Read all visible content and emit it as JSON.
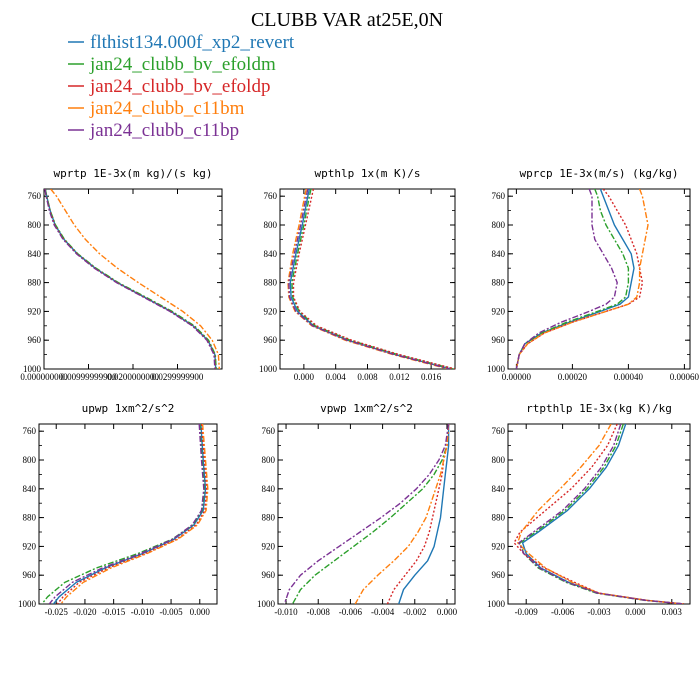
{
  "figure_title": "CLUBB VAR at25E,0N",
  "legend": [
    {
      "label": "flthist134.000f_xp2_revert",
      "color": "#1f77b4",
      "dash": ""
    },
    {
      "label": "jan24_clubb_bv_efoldm",
      "color": "#2ca02c",
      "dash": "6,2,2,2"
    },
    {
      "label": "jan24_clubb_bv_efoldp",
      "color": "#d62728",
      "dash": "2,2"
    },
    {
      "label": "jan24_clubb_c11bm",
      "color": "#ff7f0e",
      "dash": "6,2,2,2"
    },
    {
      "label": "jan24_clubb_c11bp",
      "color": "#7b3294",
      "dash": "6,2,2,2"
    }
  ],
  "chart_data": [
    {
      "type": "line",
      "title": "wprtp  1E-3x(m kg)/(s kg)",
      "xlim": [
        0.0,
        0.04
      ],
      "ylim": [
        1000,
        750
      ],
      "xticks": [
        0.0,
        0.01,
        0.02,
        0.03
      ],
      "xtick_labels": [
        "0.000000000",
        "0.00999999900",
        "0.0200000000",
        "0.0299999900"
      ],
      "yticks": [
        760,
        800,
        840,
        880,
        920,
        960,
        1000
      ],
      "y": [
        750,
        760,
        780,
        800,
        820,
        840,
        860,
        880,
        900,
        920,
        940,
        960,
        980,
        1000
      ],
      "series": [
        {
          "values": [
            0.0003,
            0.0006,
            0.0014,
            0.0025,
            0.0045,
            0.0075,
            0.0115,
            0.0165,
            0.0225,
            0.0285,
            0.0335,
            0.0368,
            0.0384,
            0.0386
          ]
        },
        {
          "values": [
            0.0003,
            0.0006,
            0.0014,
            0.0026,
            0.0046,
            0.0076,
            0.0117,
            0.0167,
            0.0228,
            0.0288,
            0.0338,
            0.037,
            0.0385,
            0.0387
          ]
        },
        {
          "values": [
            0.0002,
            0.0005,
            0.0013,
            0.0024,
            0.0044,
            0.0074,
            0.0114,
            0.0164,
            0.0224,
            0.0284,
            0.0334,
            0.0367,
            0.0383,
            0.0385
          ]
        },
        {
          "values": [
            0.0015,
            0.0028,
            0.0048,
            0.0068,
            0.0093,
            0.0125,
            0.0165,
            0.0212,
            0.0262,
            0.0312,
            0.0352,
            0.0378,
            0.0392,
            0.0394
          ]
        },
        {
          "values": [
            0.0002,
            0.0005,
            0.0012,
            0.0023,
            0.0043,
            0.0073,
            0.0113,
            0.0163,
            0.0223,
            0.0283,
            0.0333,
            0.0366,
            0.0382,
            0.0384
          ]
        }
      ]
    },
    {
      "type": "line",
      "title": "wpthlp  1x(m K)/s",
      "xlim": [
        -0.003,
        0.019
      ],
      "ylim": [
        1000,
        750
      ],
      "xticks": [
        0.0,
        0.004,
        0.008,
        0.012,
        0.016
      ],
      "xtick_labels": [
        "0.000",
        "0.004",
        "0.008",
        "0.012",
        "0.016"
      ],
      "yticks": [
        760,
        800,
        840,
        880,
        920,
        960,
        1000
      ],
      "y": [
        750,
        760,
        800,
        840,
        880,
        900,
        920,
        940,
        960,
        980,
        1000
      ],
      "series": [
        {
          "values": [
            0.0007,
            0.0005,
            -0.0002,
            -0.001,
            -0.0017,
            -0.0016,
            -0.0008,
            0.0012,
            0.0055,
            0.0115,
            0.0185
          ]
        },
        {
          "values": [
            0.0009,
            0.0007,
            0.0,
            -0.0008,
            -0.0015,
            -0.0014,
            -0.0006,
            0.0014,
            0.0058,
            0.0118,
            0.0188
          ]
        },
        {
          "values": [
            0.0012,
            0.001,
            0.0002,
            -0.0006,
            -0.0013,
            -0.0013,
            -0.0005,
            0.0016,
            0.006,
            0.012,
            0.019
          ]
        },
        {
          "values": [
            0.0003,
            0.0001,
            -0.0006,
            -0.0014,
            -0.002,
            -0.0019,
            -0.0011,
            0.001,
            0.0052,
            0.0112,
            0.0182
          ]
        },
        {
          "values": [
            0.0005,
            0.0003,
            -0.0004,
            -0.0012,
            -0.0019,
            -0.0018,
            -0.001,
            0.0011,
            0.0054,
            0.0114,
            0.0184
          ]
        }
      ]
    },
    {
      "type": "line",
      "title": "wprcp  1E-3x(m/s) (kg/kg)",
      "xlim": [
        -3e-05,
        0.00062
      ],
      "ylim": [
        1000,
        750
      ],
      "xticks": [
        0.0,
        0.0002,
        0.0004,
        0.0006
      ],
      "xtick_labels": [
        "0.00000",
        "0.00020",
        "0.00040",
        "0.00060"
      ],
      "yticks": [
        760,
        800,
        840,
        880,
        920,
        960,
        1000
      ],
      "y": [
        750,
        760,
        780,
        800,
        820,
        840,
        860,
        880,
        900,
        910,
        920,
        935,
        950,
        965,
        980,
        1000
      ],
      "series": [
        {
          "values": [
            0.0003,
            0.00031,
            0.00033,
            0.00035,
            0.00038,
            0.00041,
            0.00042,
            0.00041,
            0.0004,
            0.00037,
            0.0003,
            0.00019,
            9e-05,
            3e-05,
            1e-05,
            0.0
          ]
        },
        {
          "values": [
            0.00028,
            0.00029,
            0.0003,
            0.00032,
            0.00035,
            0.00038,
            0.0004,
            0.0004,
            0.00039,
            0.00036,
            0.00029,
            0.00018,
            9e-05,
            3e-05,
            1e-05,
            0.0
          ]
        },
        {
          "values": [
            0.00031,
            0.00033,
            0.00036,
            0.00039,
            0.00041,
            0.00043,
            0.00044,
            0.00045,
            0.00044,
            0.0004,
            0.00032,
            0.0002,
            0.0001,
            4e-05,
            1e-05,
            0.0
          ]
        },
        {
          "values": [
            0.00044,
            0.00045,
            0.00046,
            0.00047,
            0.00046,
            0.00045,
            0.00044,
            0.00044,
            0.00043,
            0.0004,
            0.00032,
            0.0002,
            0.0001,
            4e-05,
            1e-05,
            0.0
          ]
        },
        {
          "values": [
            0.00026,
            0.00027,
            0.00027,
            0.00027,
            0.00028,
            0.00031,
            0.00034,
            0.00036,
            0.00035,
            0.00032,
            0.00026,
            0.00016,
            8e-05,
            3e-05,
            1e-05,
            0.0
          ]
        }
      ]
    },
    {
      "type": "line",
      "title": "upwp  1xm^2/s^2",
      "xlim": [
        -0.028,
        0.003
      ],
      "ylim": [
        1000,
        750
      ],
      "xticks": [
        -0.025,
        -0.02,
        -0.015,
        -0.01,
        -0.005,
        0.0
      ],
      "xtick_labels": [
        "-0.025",
        "-0.020",
        "-0.015",
        "-0.010",
        "-0.005",
        "0.000"
      ],
      "yticks": [
        760,
        800,
        840,
        880,
        920,
        960,
        1000
      ],
      "y": [
        750,
        800,
        840,
        870,
        890,
        910,
        930,
        950,
        970,
        990,
        1000
      ],
      "series": [
        {
          "values": [
            0.0002,
            0.0006,
            0.001,
            0.0006,
            -0.001,
            -0.0045,
            -0.01,
            -0.0165,
            -0.0215,
            -0.0245,
            -0.0255
          ]
        },
        {
          "values": [
            0.0,
            0.0004,
            0.0008,
            0.0004,
            -0.0012,
            -0.0048,
            -0.0108,
            -0.018,
            -0.0235,
            -0.0265,
            -0.0275
          ]
        },
        {
          "values": [
            0.0003,
            0.0008,
            0.0012,
            0.0009,
            -0.0006,
            -0.004,
            -0.0095,
            -0.016,
            -0.021,
            -0.0238,
            -0.0248
          ]
        },
        {
          "values": [
            0.0005,
            0.001,
            0.0014,
            0.0011,
            -0.0004,
            -0.0038,
            -0.0092,
            -0.0155,
            -0.0203,
            -0.0232,
            -0.0242
          ]
        },
        {
          "values": [
            -0.0001,
            0.0003,
            0.0007,
            0.0003,
            -0.0013,
            -0.0047,
            -0.0103,
            -0.017,
            -0.0222,
            -0.0252,
            -0.0262
          ]
        }
      ]
    },
    {
      "type": "line",
      "title": "vpwp  1xm^2/s^2",
      "xlim": [
        -0.0105,
        0.0005
      ],
      "ylim": [
        1000,
        750
      ],
      "xticks": [
        -0.01,
        -0.008,
        -0.006,
        -0.004,
        -0.002,
        0.0
      ],
      "xtick_labels": [
        "-0.010",
        "-0.008",
        "-0.006",
        "-0.004",
        "-0.002",
        "0.000"
      ],
      "yticks": [
        760,
        800,
        840,
        880,
        920,
        960,
        1000
      ],
      "y": [
        750,
        780,
        800,
        820,
        840,
        860,
        880,
        900,
        920,
        940,
        960,
        980,
        1000
      ],
      "series": [
        {
          "values": [
            0.0001,
            0.0001,
            0.0,
            -0.0001,
            -0.0002,
            -0.0003,
            -0.0004,
            -0.0006,
            -0.0008,
            -0.0012,
            -0.002,
            -0.0027,
            -0.003
          ]
        },
        {
          "values": [
            0.0001,
            0.0,
            -0.0003,
            -0.0008,
            -0.0015,
            -0.0025,
            -0.0035,
            -0.0046,
            -0.0058,
            -0.007,
            -0.0082,
            -0.0091,
            -0.0096
          ]
        },
        {
          "values": [
            0.0001,
            0.0,
            -0.0002,
            -0.0003,
            -0.0005,
            -0.0007,
            -0.0009,
            -0.0011,
            -0.0014,
            -0.0019,
            -0.0026,
            -0.0033,
            -0.0037
          ]
        },
        {
          "values": [
            0.0001,
            0.0,
            -0.0002,
            -0.0004,
            -0.0007,
            -0.001,
            -0.0013,
            -0.0018,
            -0.0024,
            -0.0033,
            -0.0043,
            -0.0052,
            -0.0057
          ]
        },
        {
          "values": [
            0.0001,
            -0.0001,
            -0.0005,
            -0.0011,
            -0.0019,
            -0.0029,
            -0.0041,
            -0.0054,
            -0.0067,
            -0.008,
            -0.0091,
            -0.0098,
            -0.0101
          ]
        }
      ]
    },
    {
      "type": "line",
      "title": "rtpthlp  1E-3x(kg K)/kg",
      "xlim": [
        -0.0105,
        0.0045
      ],
      "ylim": [
        1000,
        750
      ],
      "xticks": [
        -0.009,
        -0.006,
        -0.003,
        0.0,
        0.003
      ],
      "xtick_labels": [
        "-0.009",
        "-0.006",
        "-0.003",
        "0.000",
        "0.003"
      ],
      "yticks": [
        760,
        800,
        840,
        880,
        920,
        960,
        1000
      ],
      "y": [
        750,
        780,
        810,
        840,
        870,
        900,
        915,
        930,
        950,
        970,
        985,
        995,
        1000
      ],
      "series": [
        {
          "values": [
            -0.0008,
            -0.0014,
            -0.0024,
            -0.0038,
            -0.0056,
            -0.008,
            -0.0093,
            -0.009,
            -0.0078,
            -0.0055,
            -0.003,
            0.001,
            0.004
          ]
        },
        {
          "values": [
            -0.001,
            -0.0016,
            -0.0026,
            -0.004,
            -0.0058,
            -0.0082,
            -0.0095,
            -0.0092,
            -0.008,
            -0.0057,
            -0.0032,
            0.0008,
            0.004
          ]
        },
        {
          "values": [
            -0.0015,
            -0.0023,
            -0.0036,
            -0.0053,
            -0.0074,
            -0.0095,
            -0.01,
            -0.0092,
            -0.0075,
            -0.005,
            -0.003,
            0.001,
            0.004
          ]
        },
        {
          "values": [
            -0.002,
            -0.003,
            -0.0045,
            -0.0062,
            -0.008,
            -0.0094,
            -0.0097,
            -0.0088,
            -0.0074,
            -0.0052,
            -0.003,
            0.001,
            0.004
          ]
        },
        {
          "values": [
            -0.0012,
            -0.0018,
            -0.0028,
            -0.0042,
            -0.006,
            -0.0084,
            -0.0096,
            -0.0092,
            -0.0079,
            -0.0056,
            -0.0031,
            0.0009,
            0.004
          ]
        }
      ]
    }
  ]
}
